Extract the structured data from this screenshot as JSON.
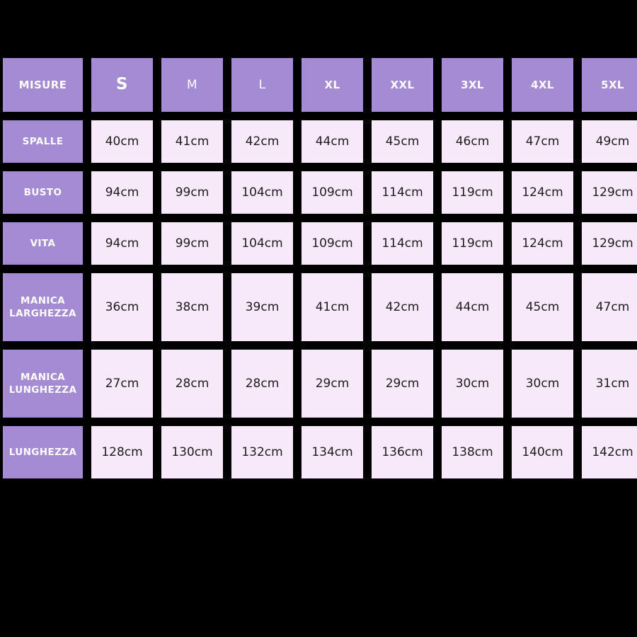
{
  "colors": {
    "page_background": "#000000",
    "header_cell_background": "#a48bd3",
    "header_cell_text": "#ffffff",
    "value_cell_background": "#f7e8fa",
    "value_cell_text": "#1c1c1c"
  },
  "chart_data": {
    "type": "table",
    "corner_label": "MISURE",
    "size_headers": [
      {
        "label": "S",
        "emphasis": "bold-large"
      },
      {
        "label": "M",
        "emphasis": "regular"
      },
      {
        "label": "L",
        "emphasis": "regular"
      },
      {
        "label": "XL",
        "emphasis": "bold"
      },
      {
        "label": "XXL",
        "emphasis": "bold"
      },
      {
        "label": "3XL",
        "emphasis": "bold"
      },
      {
        "label": "4XL",
        "emphasis": "bold"
      },
      {
        "label": "5XL",
        "emphasis": "bold"
      }
    ],
    "rows": [
      {
        "label": "SPALLE",
        "values": [
          "40cm",
          "41cm",
          "42cm",
          "44cm",
          "45cm",
          "46cm",
          "47cm",
          "49cm"
        ]
      },
      {
        "label": "BUSTO",
        "values": [
          "94cm",
          "99cm",
          "104cm",
          "109cm",
          "114cm",
          "119cm",
          "124cm",
          "129cm"
        ]
      },
      {
        "label": "VITA",
        "values": [
          "94cm",
          "99cm",
          "104cm",
          "109cm",
          "114cm",
          "119cm",
          "124cm",
          "129cm"
        ]
      },
      {
        "label": "MANICA LARGHEZZA",
        "values": [
          "36cm",
          "38cm",
          "39cm",
          "41cm",
          "42cm",
          "44cm",
          "45cm",
          "47cm"
        ]
      },
      {
        "label": "MANICA LUNGHEZZA",
        "values": [
          "27cm",
          "28cm",
          "28cm",
          "29cm",
          "29cm",
          "30cm",
          "30cm",
          "31cm"
        ]
      },
      {
        "label": "LUNGHEZZA",
        "values": [
          "128cm",
          "130cm",
          "132cm",
          "134cm",
          "136cm",
          "138cm",
          "140cm",
          "142cm"
        ]
      }
    ]
  }
}
